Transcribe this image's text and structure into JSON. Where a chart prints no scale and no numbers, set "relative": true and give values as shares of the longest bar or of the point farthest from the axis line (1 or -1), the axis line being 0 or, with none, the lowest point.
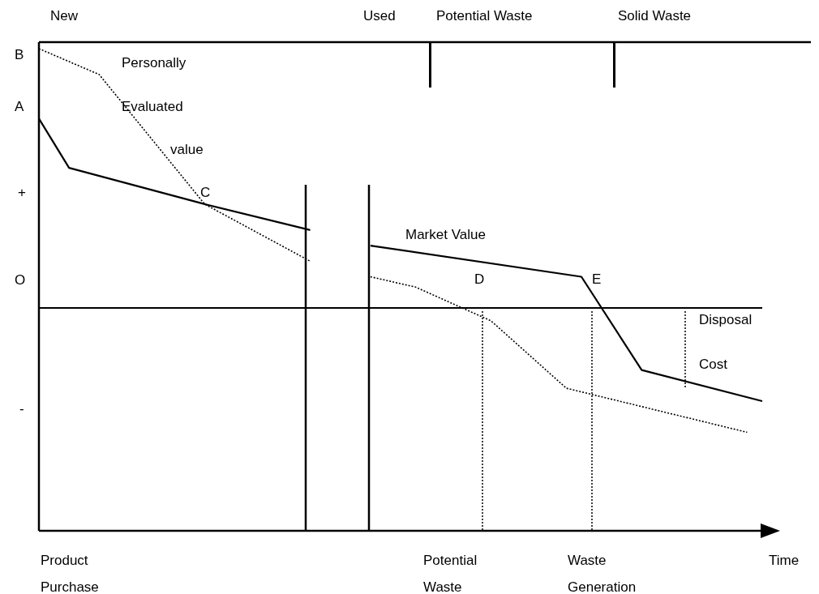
{
  "chart_data": {
    "type": "line",
    "relative": true,
    "categories": [
      null,
      null,
      null,
      null,
      null,
      null,
      null,
      null,
      null,
      null,
      null,
      null,
      null,
      null,
      null,
      null,
      null,
      null,
      null,
      null,
      null,
      null,
      null,
      null,
      null,
      null,
      null,
      null,
      null,
      null,
      null,
      null,
      null,
      null,
      null,
      null,
      null,
      null,
      null,
      null,
      null,
      null,
      null,
      null,
      null,
      null,
      null,
      null,
      null
    ],
    "series": [
      {
        "name": "Personally Evaluated value",
        "color": "#000000",
        "line_style": "dotted",
        "values": [
          1,
          null,
          null,
          null,
          0.9,
          null,
          null,
          null,
          null,
          null,
          null,
          0.4,
          null,
          null,
          null,
          null,
          null,
          null,
          0.18,
          null,
          null,
          null,
          null,
          null,
          null,
          null,
          null,
          null,
          null,
          null,
          null,
          null,
          null,
          null,
          null,
          null,
          null,
          null,
          null,
          null,
          null,
          null,
          null,
          null,
          null,
          null,
          null,
          null,
          null
        ]
      },
      {
        "color": "#000000",
        "line_style": "solid",
        "values": [
          0.73,
          null,
          0.54,
          null,
          null,
          null,
          null,
          null,
          null,
          null,
          null,
          0.4,
          null,
          null,
          null,
          null,
          null,
          null,
          0.3,
          null,
          null,
          null,
          null,
          null,
          null,
          null,
          null,
          null,
          null,
          null,
          null,
          null,
          null,
          null,
          null,
          null,
          null,
          null,
          null,
          null,
          null,
          null,
          null,
          null,
          null,
          null,
          null,
          null,
          null
        ]
      },
      {
        "name": "Market Value",
        "color": "#000000",
        "line_style": "solid",
        "values": [
          null,
          null,
          null,
          null,
          null,
          null,
          null,
          null,
          null,
          null,
          null,
          null,
          null,
          null,
          null,
          null,
          null,
          null,
          null,
          null,
          null,
          null,
          0.24,
          null,
          null,
          null,
          null,
          null,
          null,
          null,
          null,
          null,
          null,
          null,
          null,
          null,
          0.12,
          null,
          null,
          null,
          -0.24,
          null,
          null,
          null,
          null,
          null,
          null,
          null,
          -0.36
        ]
      },
      {
        "color": "#000000",
        "line_style": "dotted",
        "values": [
          null,
          null,
          null,
          null,
          null,
          null,
          null,
          null,
          null,
          null,
          null,
          null,
          null,
          null,
          null,
          null,
          null,
          null,
          null,
          null,
          null,
          null,
          0.12,
          null,
          null,
          0.08,
          null,
          null,
          null,
          null,
          -0.05,
          null,
          null,
          null,
          null,
          -0.31,
          null,
          null,
          null,
          null,
          null,
          null,
          null,
          null,
          null,
          null,
          null,
          -0.48,
          null
        ]
      }
    ],
    "annotations": [
      "New",
      "Used",
      "Potential Waste",
      "Solid Waste",
      "B",
      "A",
      "+",
      "O",
      "-",
      "C",
      "D",
      "E",
      "Disposal Cost",
      "Product Purchase",
      "Potential Waste",
      "Waste Generation",
      "Time"
    ]
  }
}
